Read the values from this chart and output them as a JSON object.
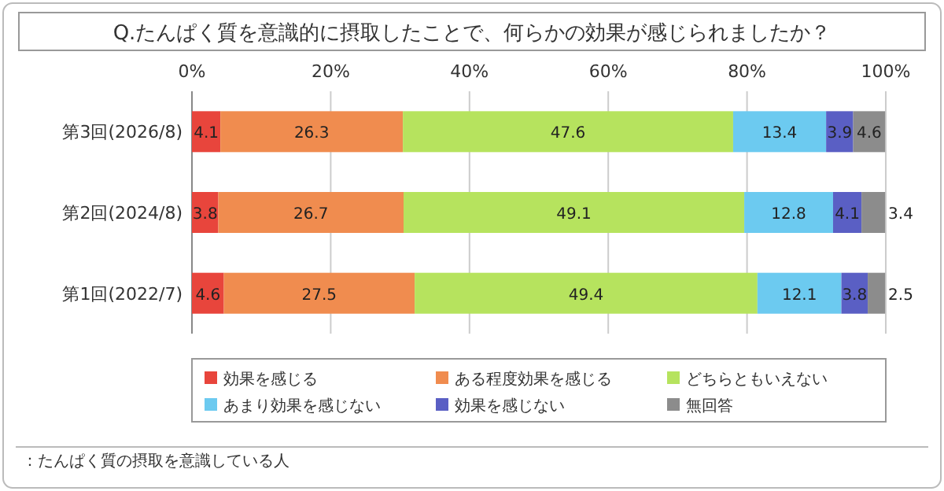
{
  "chart_data": {
    "type": "bar",
    "orientation": "horizontal",
    "stacked": true,
    "title": "Q.たんぱく質を意識的に摂取したことで、何らかの効果が感じられましたか？",
    "categories": [
      "第3回(2026/8)",
      "第2回(2024/8)",
      "第1回(2022/7)"
    ],
    "series": [
      {
        "name": "効果を感じる",
        "color": "#e8453c",
        "values": [
          4.1,
          3.8,
          4.6
        ]
      },
      {
        "name": "ある程度効果を感じる",
        "color": "#f08c4f",
        "values": [
          26.3,
          26.7,
          27.5
        ]
      },
      {
        "name": "どちらともいえない",
        "color": "#b6e35e",
        "values": [
          47.6,
          49.1,
          49.4
        ]
      },
      {
        "name": "あまり効果を感じない",
        "color": "#6ccaf0",
        "values": [
          13.4,
          12.8,
          12.1
        ]
      },
      {
        "name": "効果を感じない",
        "color": "#5a5fc4",
        "values": [
          3.9,
          4.1,
          3.8
        ]
      },
      {
        "name": "無回答",
        "color": "#8c8c8c",
        "values": [
          4.6,
          3.4,
          2.5
        ]
      }
    ],
    "xlim": [
      0,
      100
    ],
    "xticks": [
      {
        "value": 0,
        "label": "0%"
      },
      {
        "value": 20,
        "label": "20%"
      },
      {
        "value": 40,
        "label": "40%"
      },
      {
        "value": 60,
        "label": "60%"
      },
      {
        "value": 80,
        "label": "80%"
      },
      {
        "value": 100,
        "label": "100%"
      }
    ],
    "grid": "x",
    "legend": "bottom",
    "data_labels": true,
    "annotations": [
      "：たんぱく質の摂取を意識している人"
    ]
  }
}
